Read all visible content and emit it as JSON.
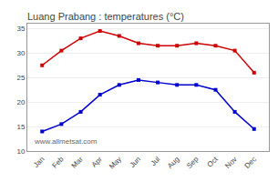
{
  "chart_data": {
    "type": "line",
    "title": "Luang Prabang : temperatures (°C)",
    "categories": [
      "Jan",
      "Feb",
      "Mar",
      "Apr",
      "May",
      "Jun",
      "Jul",
      "Aug",
      "Sep",
      "Oct",
      "Nov",
      "Dec"
    ],
    "series": [
      {
        "color": "#cc0000",
        "marker": "square",
        "line_style": "solid",
        "values": [
          27.5,
          30.5,
          33.0,
          34.5,
          33.5,
          32.0,
          31.5,
          31.5,
          32.0,
          31.5,
          30.5,
          26.0
        ]
      },
      {
        "color": "#0000cc",
        "marker": "square",
        "line_style": "solid",
        "values": [
          14.0,
          15.5,
          18.0,
          21.5,
          23.5,
          24.5,
          24.0,
          23.5,
          23.5,
          22.5,
          18.0,
          14.5
        ]
      }
    ],
    "ylim": [
      10,
      36
    ],
    "yticks": [
      10,
      15,
      20,
      25,
      30,
      35
    ],
    "grid": true,
    "annotations": [
      "www.allmetsat.com"
    ]
  }
}
